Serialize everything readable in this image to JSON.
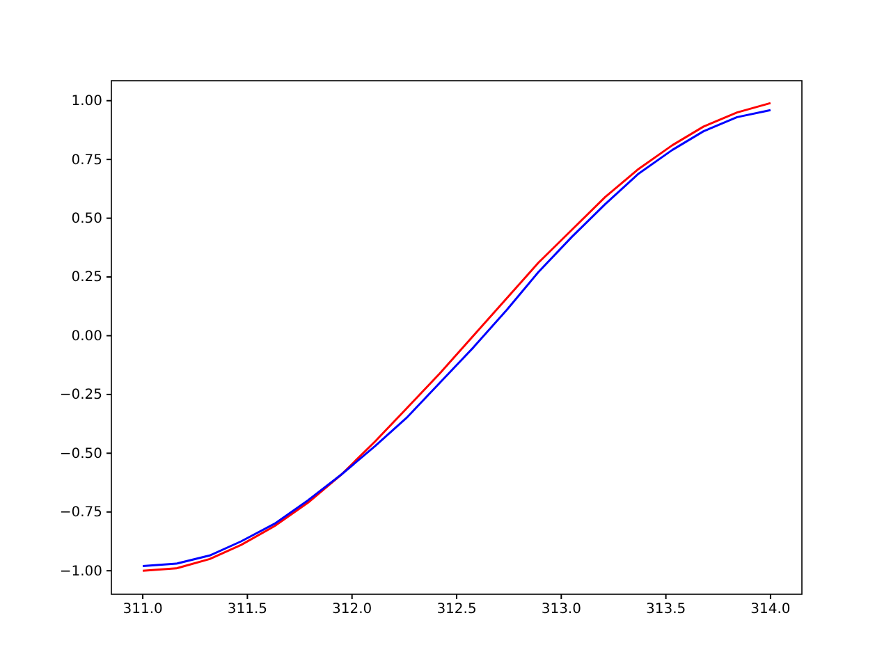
{
  "chart_data": {
    "type": "line",
    "x": [
      311.0,
      311.16,
      311.32,
      311.47,
      311.63,
      311.79,
      311.95,
      312.11,
      312.26,
      312.42,
      312.58,
      312.74,
      312.89,
      313.05,
      313.21,
      313.37,
      313.53,
      313.68,
      313.84,
      314.0
    ],
    "series": [
      {
        "color": "#ff0000",
        "values": [
          -1.0,
          -0.99,
          -0.95,
          -0.89,
          -0.81,
          -0.71,
          -0.59,
          -0.45,
          -0.31,
          -0.16,
          0.0,
          0.16,
          0.31,
          0.45,
          0.59,
          0.71,
          0.81,
          0.89,
          0.95,
          0.99
        ]
      },
      {
        "color": "#0000ff",
        "values": [
          -0.98,
          -0.97,
          -0.935,
          -0.875,
          -0.8,
          -0.7,
          -0.59,
          -0.47,
          -0.35,
          -0.2,
          -0.05,
          0.11,
          0.27,
          0.42,
          0.56,
          0.69,
          0.79,
          0.87,
          0.93,
          0.96
        ]
      }
    ],
    "xlim": [
      310.85,
      314.15
    ],
    "ylim": [
      -1.1,
      1.085
    ],
    "xticks": [
      {
        "value": 311,
        "label": "311.0"
      },
      {
        "value": 311.5,
        "label": "311.5"
      },
      {
        "value": 312,
        "label": "312.0"
      },
      {
        "value": 312.5,
        "label": "312.5"
      },
      {
        "value": 313,
        "label": "313.0"
      },
      {
        "value": 313.5,
        "label": "313.5"
      },
      {
        "value": 314,
        "label": "314.0"
      }
    ],
    "yticks": [
      {
        "value": -1,
        "label": "−1.00"
      },
      {
        "value": -0.75,
        "label": "−0.75"
      },
      {
        "value": -0.5,
        "label": "−0.50"
      },
      {
        "value": -0.25,
        "label": "−0.25"
      },
      {
        "value": 0,
        "label": "0.00"
      },
      {
        "value": 0.25,
        "label": "0.25"
      },
      {
        "value": 0.5,
        "label": "0.50"
      },
      {
        "value": 0.75,
        "label": "0.75"
      },
      {
        "value": 1,
        "label": "1.00"
      }
    ],
    "marker": "none",
    "line_style": "solid",
    "grid": false
  }
}
